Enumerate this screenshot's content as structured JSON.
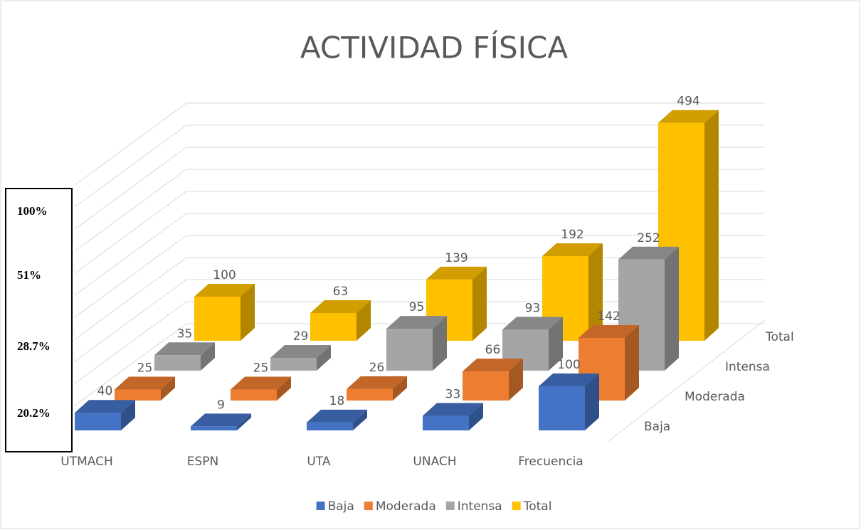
{
  "chart_data": {
    "type": "bar3d",
    "title": "ACTIVIDAD FÍSICA",
    "categories": [
      "UTMACH",
      "ESPN",
      "UTA",
      "UNACH",
      "Frecuencia"
    ],
    "series": [
      {
        "name": "Baja",
        "color": "#4472c4",
        "values": [
          40,
          9,
          18,
          33,
          100
        ]
      },
      {
        "name": "Moderada",
        "color": "#ed7d31",
        "values": [
          25,
          25,
          26,
          66,
          142
        ]
      },
      {
        "name": "Intensa",
        "color": "#a5a5a5",
        "values": [
          35,
          29,
          95,
          93,
          252
        ]
      },
      {
        "name": "Total",
        "color": "#ffc000",
        "values": [
          100,
          63,
          139,
          192,
          494
        ]
      }
    ],
    "ylim": [
      0,
      500
    ],
    "yticks": [
      0,
      50,
      100,
      150,
      200,
      250,
      300,
      350,
      400,
      450,
      500
    ],
    "grid": true,
    "legend": "bottom",
    "annotations": [
      "100%",
      "51%",
      "28.7%",
      "20.2%"
    ]
  }
}
